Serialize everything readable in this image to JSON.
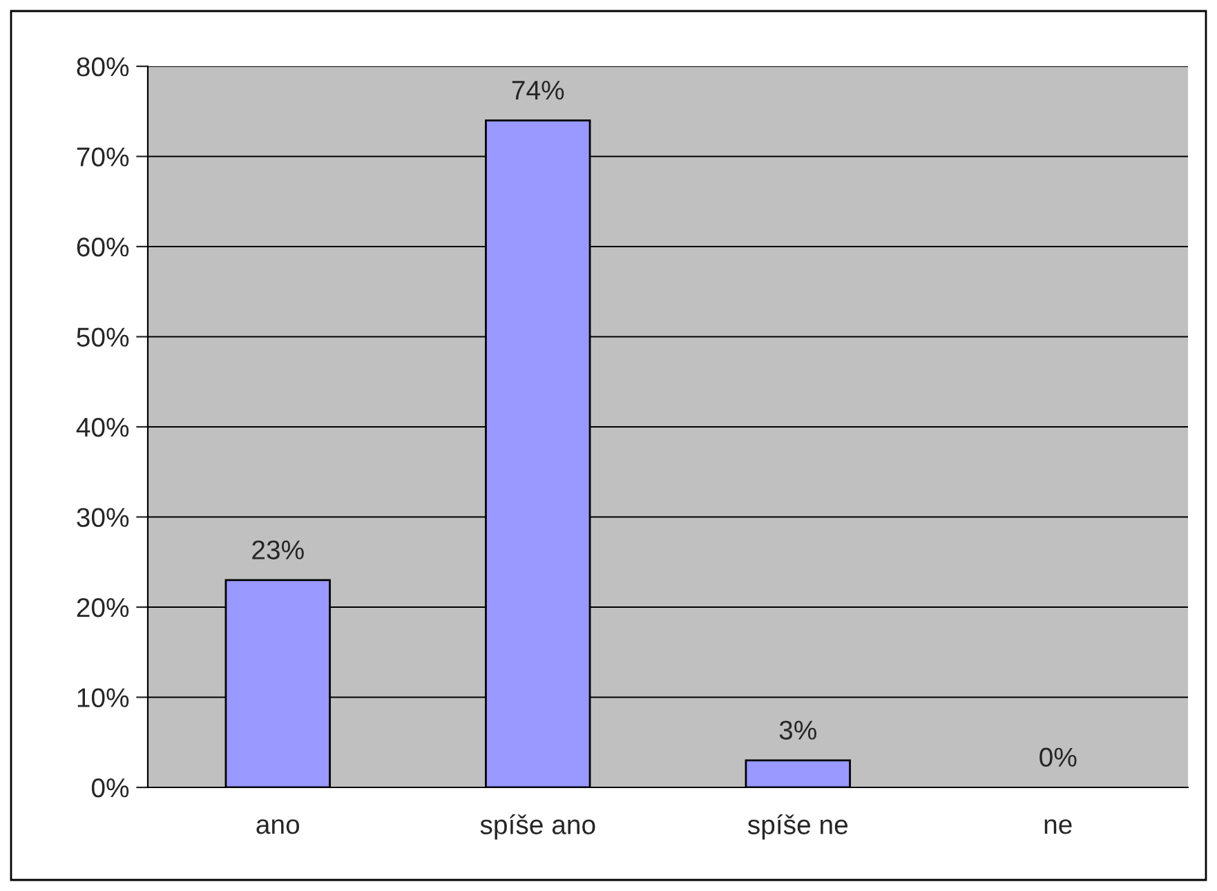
{
  "chart_data": {
    "type": "bar",
    "categories": [
      "ano",
      "spíše ano",
      "spíše ne",
      "ne"
    ],
    "values": [
      23,
      74,
      3,
      0
    ],
    "value_labels": [
      "23%",
      "74%",
      "3%",
      "0%"
    ],
    "color": "#9999ff",
    "ylim": [
      0,
      80
    ],
    "yticks": [
      {
        "value": 0,
        "label": "0%"
      },
      {
        "value": 10,
        "label": "10%"
      },
      {
        "value": 20,
        "label": "20%"
      },
      {
        "value": 30,
        "label": "30%"
      },
      {
        "value": 40,
        "label": "40%"
      },
      {
        "value": 50,
        "label": "50%"
      },
      {
        "value": 60,
        "label": "60%"
      },
      {
        "value": 70,
        "label": "70%"
      },
      {
        "value": 80,
        "label": "80%"
      }
    ],
    "grid": "y",
    "legend": false
  }
}
